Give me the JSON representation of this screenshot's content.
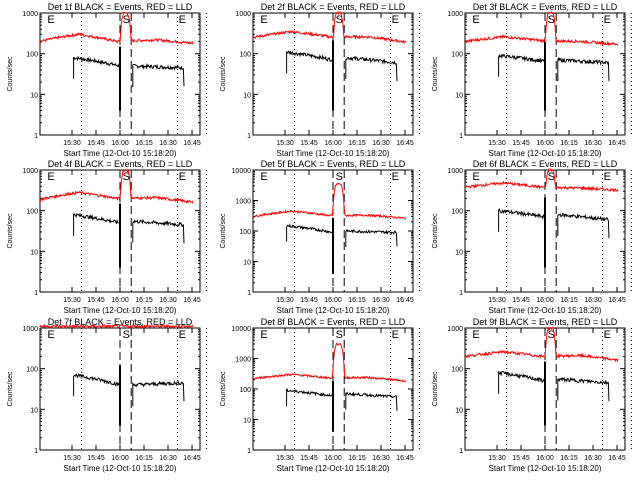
{
  "figure": {
    "background": "#ffffff"
  },
  "chart_data": [
    {
      "type": "line",
      "title": "Det 1f BLACK = Events, RED = LLD",
      "xlabel": "Start Time (12-Oct-10 15:18:20)",
      "ylabel": "Counts/sec",
      "yscale": "log",
      "ylim": [
        1,
        1000
      ],
      "ytick_labels": [
        "1",
        "10",
        "100",
        "1000"
      ],
      "xtick_labels": [
        "15:30",
        "15:45",
        "16:00",
        "16:15",
        "16:30",
        "16:45"
      ],
      "xlim_min": [
        -8,
        92
      ],
      "markers": {
        "E1": 18,
        "S": 42,
        "E2": 78,
        "dashed": [
          42,
          49
        ],
        "dotted": [
          18,
          78,
          96
        ]
      },
      "series": [
        {
          "name": "Events",
          "color": "#000000",
          "start": 13,
          "end": 82,
          "level": [
            80,
            50,
            50,
            45
          ],
          "gap": [
            42,
            49
          ]
        },
        {
          "name": "LLD",
          "color": "#ff0000",
          "level": [
            200,
            300,
            200,
            220,
            180
          ],
          "peak": 1000
        }
      ]
    },
    {
      "type": "line",
      "title": "Det 2f BLACK = Events, RED = LLD",
      "xlabel": "Start Time (12-Oct-10 15:18:20)",
      "ylabel": "Counts/sec",
      "yscale": "log",
      "ylim": [
        1,
        1000
      ],
      "ytick_labels": [
        "1",
        "10",
        "100",
        "1000"
      ],
      "xtick_labels": [
        "15:30",
        "15:45",
        "16:00",
        "16:15",
        "16:30",
        "16:45"
      ],
      "xlim_min": [
        -8,
        92
      ],
      "markers": {
        "E1": 18,
        "S": 42,
        "E2": 78,
        "dashed": [
          42,
          49
        ],
        "dotted": [
          18,
          78,
          96
        ]
      },
      "series": [
        {
          "name": "Events",
          "color": "#000000",
          "start": 13,
          "end": 82,
          "level": [
            110,
            70,
            80,
            60
          ],
          "gap": [
            42,
            49
          ]
        },
        {
          "name": "LLD",
          "color": "#ff0000",
          "level": [
            250,
            350,
            260,
            260,
            190
          ],
          "peak": 1000
        }
      ]
    },
    {
      "type": "line",
      "title": "Det 3f BLACK = Events, RED = LLD",
      "xlabel": "Start Time (12-Oct-10 15:18:20)",
      "ylabel": "Counts/sec",
      "yscale": "log",
      "ylim": [
        1,
        1000
      ],
      "ytick_labels": [
        "1",
        "10",
        "100",
        "1000"
      ],
      "xtick_labels": [
        "15:30",
        "15:45",
        "16:00",
        "16:15",
        "16:30",
        "16:45"
      ],
      "xlim_min": [
        -8,
        92
      ],
      "markers": {
        "E1": 18,
        "S": 42,
        "E2": 78,
        "dashed": [
          42,
          49
        ],
        "dotted": [
          18,
          78,
          96
        ]
      },
      "series": [
        {
          "name": "Events",
          "color": "#000000",
          "start": 13,
          "end": 82,
          "level": [
            90,
            65,
            70,
            60
          ],
          "gap": [
            42,
            49
          ]
        },
        {
          "name": "LLD",
          "color": "#ff0000",
          "level": [
            200,
            260,
            210,
            200,
            170
          ],
          "peak": 1000
        }
      ]
    },
    {
      "type": "line",
      "title": "Det 4f BLACK = Events, RED = LLD",
      "xlabel": "Start Time (12-Oct-10 15:18:20)",
      "ylabel": "Counts/sec",
      "yscale": "log",
      "ylim": [
        1,
        1000
      ],
      "ytick_labels": [
        "1",
        "10",
        "100",
        "1000"
      ],
      "xtick_labels": [
        "15:30",
        "15:45",
        "16:00",
        "16:15",
        "16:30",
        "16:45"
      ],
      "xlim_min": [
        -8,
        92
      ],
      "markers": {
        "E1": 18,
        "S": 42,
        "E2": 78,
        "dashed": [
          42,
          49
        ],
        "dotted": [
          18,
          78,
          96
        ]
      },
      "series": [
        {
          "name": "Events",
          "color": "#000000",
          "start": 13,
          "end": 82,
          "level": [
            80,
            50,
            55,
            45
          ],
          "gap": [
            42,
            49
          ]
        },
        {
          "name": "LLD",
          "color": "#ff0000",
          "level": [
            190,
            280,
            200,
            210,
            160
          ],
          "peak": 1000
        }
      ]
    },
    {
      "type": "line",
      "title": "Det 5f BLACK = Events, RED = LLD",
      "xlabel": "Start Time (12-Oct-10 15:18:20)",
      "ylabel": "Counts/sec",
      "yscale": "log",
      "ylim": [
        1,
        10000
      ],
      "ytick_labels": [
        "1",
        "10",
        "100",
        "1000",
        "10000"
      ],
      "xtick_labels": [
        "15:30",
        "15:45",
        "16:00",
        "16:15",
        "16:30",
        "16:45"
      ],
      "xlim_min": [
        -8,
        92
      ],
      "markers": {
        "E1": 18,
        "S": 42,
        "E2": 78,
        "dashed": [
          42,
          49
        ],
        "dotted": [
          18,
          78,
          96
        ]
      },
      "series": [
        {
          "name": "Events",
          "color": "#000000",
          "start": 13,
          "end": 82,
          "level": [
            150,
            90,
            100,
            90
          ],
          "gap": [
            42,
            49
          ]
        },
        {
          "name": "LLD",
          "color": "#ff0000",
          "level": [
            300,
            450,
            320,
            330,
            260
          ],
          "peak": 3500
        }
      ]
    },
    {
      "type": "line",
      "title": "Det 6f BLACK = Events, RED = LLD",
      "xlabel": "Start Time (12-Oct-10 15:18:20)",
      "ylabel": "Counts/sec",
      "yscale": "log",
      "ylim": [
        1,
        1000
      ],
      "ytick_labels": [
        "1",
        "10",
        "100",
        "1000"
      ],
      "xtick_labels": [
        "15:30",
        "15:45",
        "16:00",
        "16:15",
        "16:30",
        "16:45"
      ],
      "xlim_min": [
        -8,
        92
      ],
      "markers": {
        "E1": 18,
        "S": 42,
        "E2": 78,
        "dashed": [
          42,
          49
        ],
        "dotted": [
          18,
          78,
          96
        ]
      },
      "series": [
        {
          "name": "Events",
          "color": "#000000",
          "start": 13,
          "end": 82,
          "level": [
            100,
            70,
            80,
            60
          ],
          "gap": [
            42,
            49
          ]
        },
        {
          "name": "LLD",
          "color": "#ff0000",
          "level": [
            380,
            480,
            380,
            360,
            320
          ],
          "peak": 1000
        }
      ]
    },
    {
      "type": "line",
      "title": "Det 7f BLACK = Events, RED = LLD",
      "xlabel": "Start Time (12-Oct-10 15:18:20)",
      "ylabel": "Counts/sec",
      "yscale": "log",
      "ylim": [
        1,
        1000
      ],
      "ytick_labels": [
        "1",
        "10",
        "100",
        "1000"
      ],
      "xtick_labels": [
        "15:30",
        "15:45",
        "16:00",
        "16:15",
        "16:30",
        "16:45"
      ],
      "xlim_min": [
        -8,
        92
      ],
      "markers": {
        "E1": 18,
        "S": 42,
        "E2": 78,
        "dashed": [
          42,
          49
        ],
        "dotted": [
          18,
          78,
          96
        ]
      },
      "series": [
        {
          "name": "Events",
          "color": "#000000",
          "start": 13,
          "end": 82,
          "level": [
            70,
            40,
            40,
            45
          ],
          "gap": [
            42,
            49
          ]
        },
        {
          "name": "LLD",
          "color": "#ff0000",
          "level": [
            1100,
            1100,
            1100,
            1100,
            1100
          ],
          "peak": 1000
        }
      ]
    },
    {
      "type": "line",
      "title": "Det 8f BLACK = Events, RED = LLD",
      "xlabel": "Start Time (12-Oct-10 15:18:20)",
      "ylabel": "Counts/sec",
      "yscale": "log",
      "ylim": [
        1,
        10000
      ],
      "ytick_labels": [
        "1",
        "10",
        "100",
        "1000",
        "10000"
      ],
      "xtick_labels": [
        "15:30",
        "15:45",
        "16:00",
        "16:15",
        "16:30",
        "16:45"
      ],
      "xlim_min": [
        -8,
        92
      ],
      "markers": {
        "E1": 18,
        "S": 42,
        "E2": 78,
        "dashed": [
          42,
          49
        ],
        "dotted": [
          18,
          78,
          96
        ]
      },
      "series": [
        {
          "name": "Events",
          "color": "#000000",
          "start": 13,
          "end": 82,
          "level": [
            90,
            60,
            70,
            55
          ],
          "gap": [
            42,
            49
          ]
        },
        {
          "name": "LLD",
          "color": "#ff0000",
          "level": [
            220,
            300,
            230,
            240,
            180
          ],
          "peak": 3000
        }
      ]
    },
    {
      "type": "line",
      "title": "Det 9f BLACK = Events, RED = LLD",
      "xlabel": "Start Time (12-Oct-10 15:18:20)",
      "ylabel": "Counts/sec",
      "yscale": "log",
      "ylim": [
        1,
        1000
      ],
      "ytick_labels": [
        "1",
        "10",
        "100",
        "1000"
      ],
      "xtick_labels": [
        "15:30",
        "15:45",
        "16:00",
        "16:15",
        "16:30",
        "16:45"
      ],
      "xlim_min": [
        -8,
        92
      ],
      "markers": {
        "E1": 18,
        "S": 42,
        "E2": 78,
        "dashed": [
          42,
          49
        ],
        "dotted": [
          18,
          78,
          96
        ]
      },
      "series": [
        {
          "name": "Events",
          "color": "#000000",
          "start": 13,
          "end": 82,
          "level": [
            80,
            50,
            55,
            45
          ],
          "gap": [
            42,
            49
          ]
        },
        {
          "name": "LLD",
          "color": "#ff0000",
          "level": [
            200,
            260,
            200,
            210,
            160
          ],
          "peak": 1000
        }
      ]
    }
  ]
}
